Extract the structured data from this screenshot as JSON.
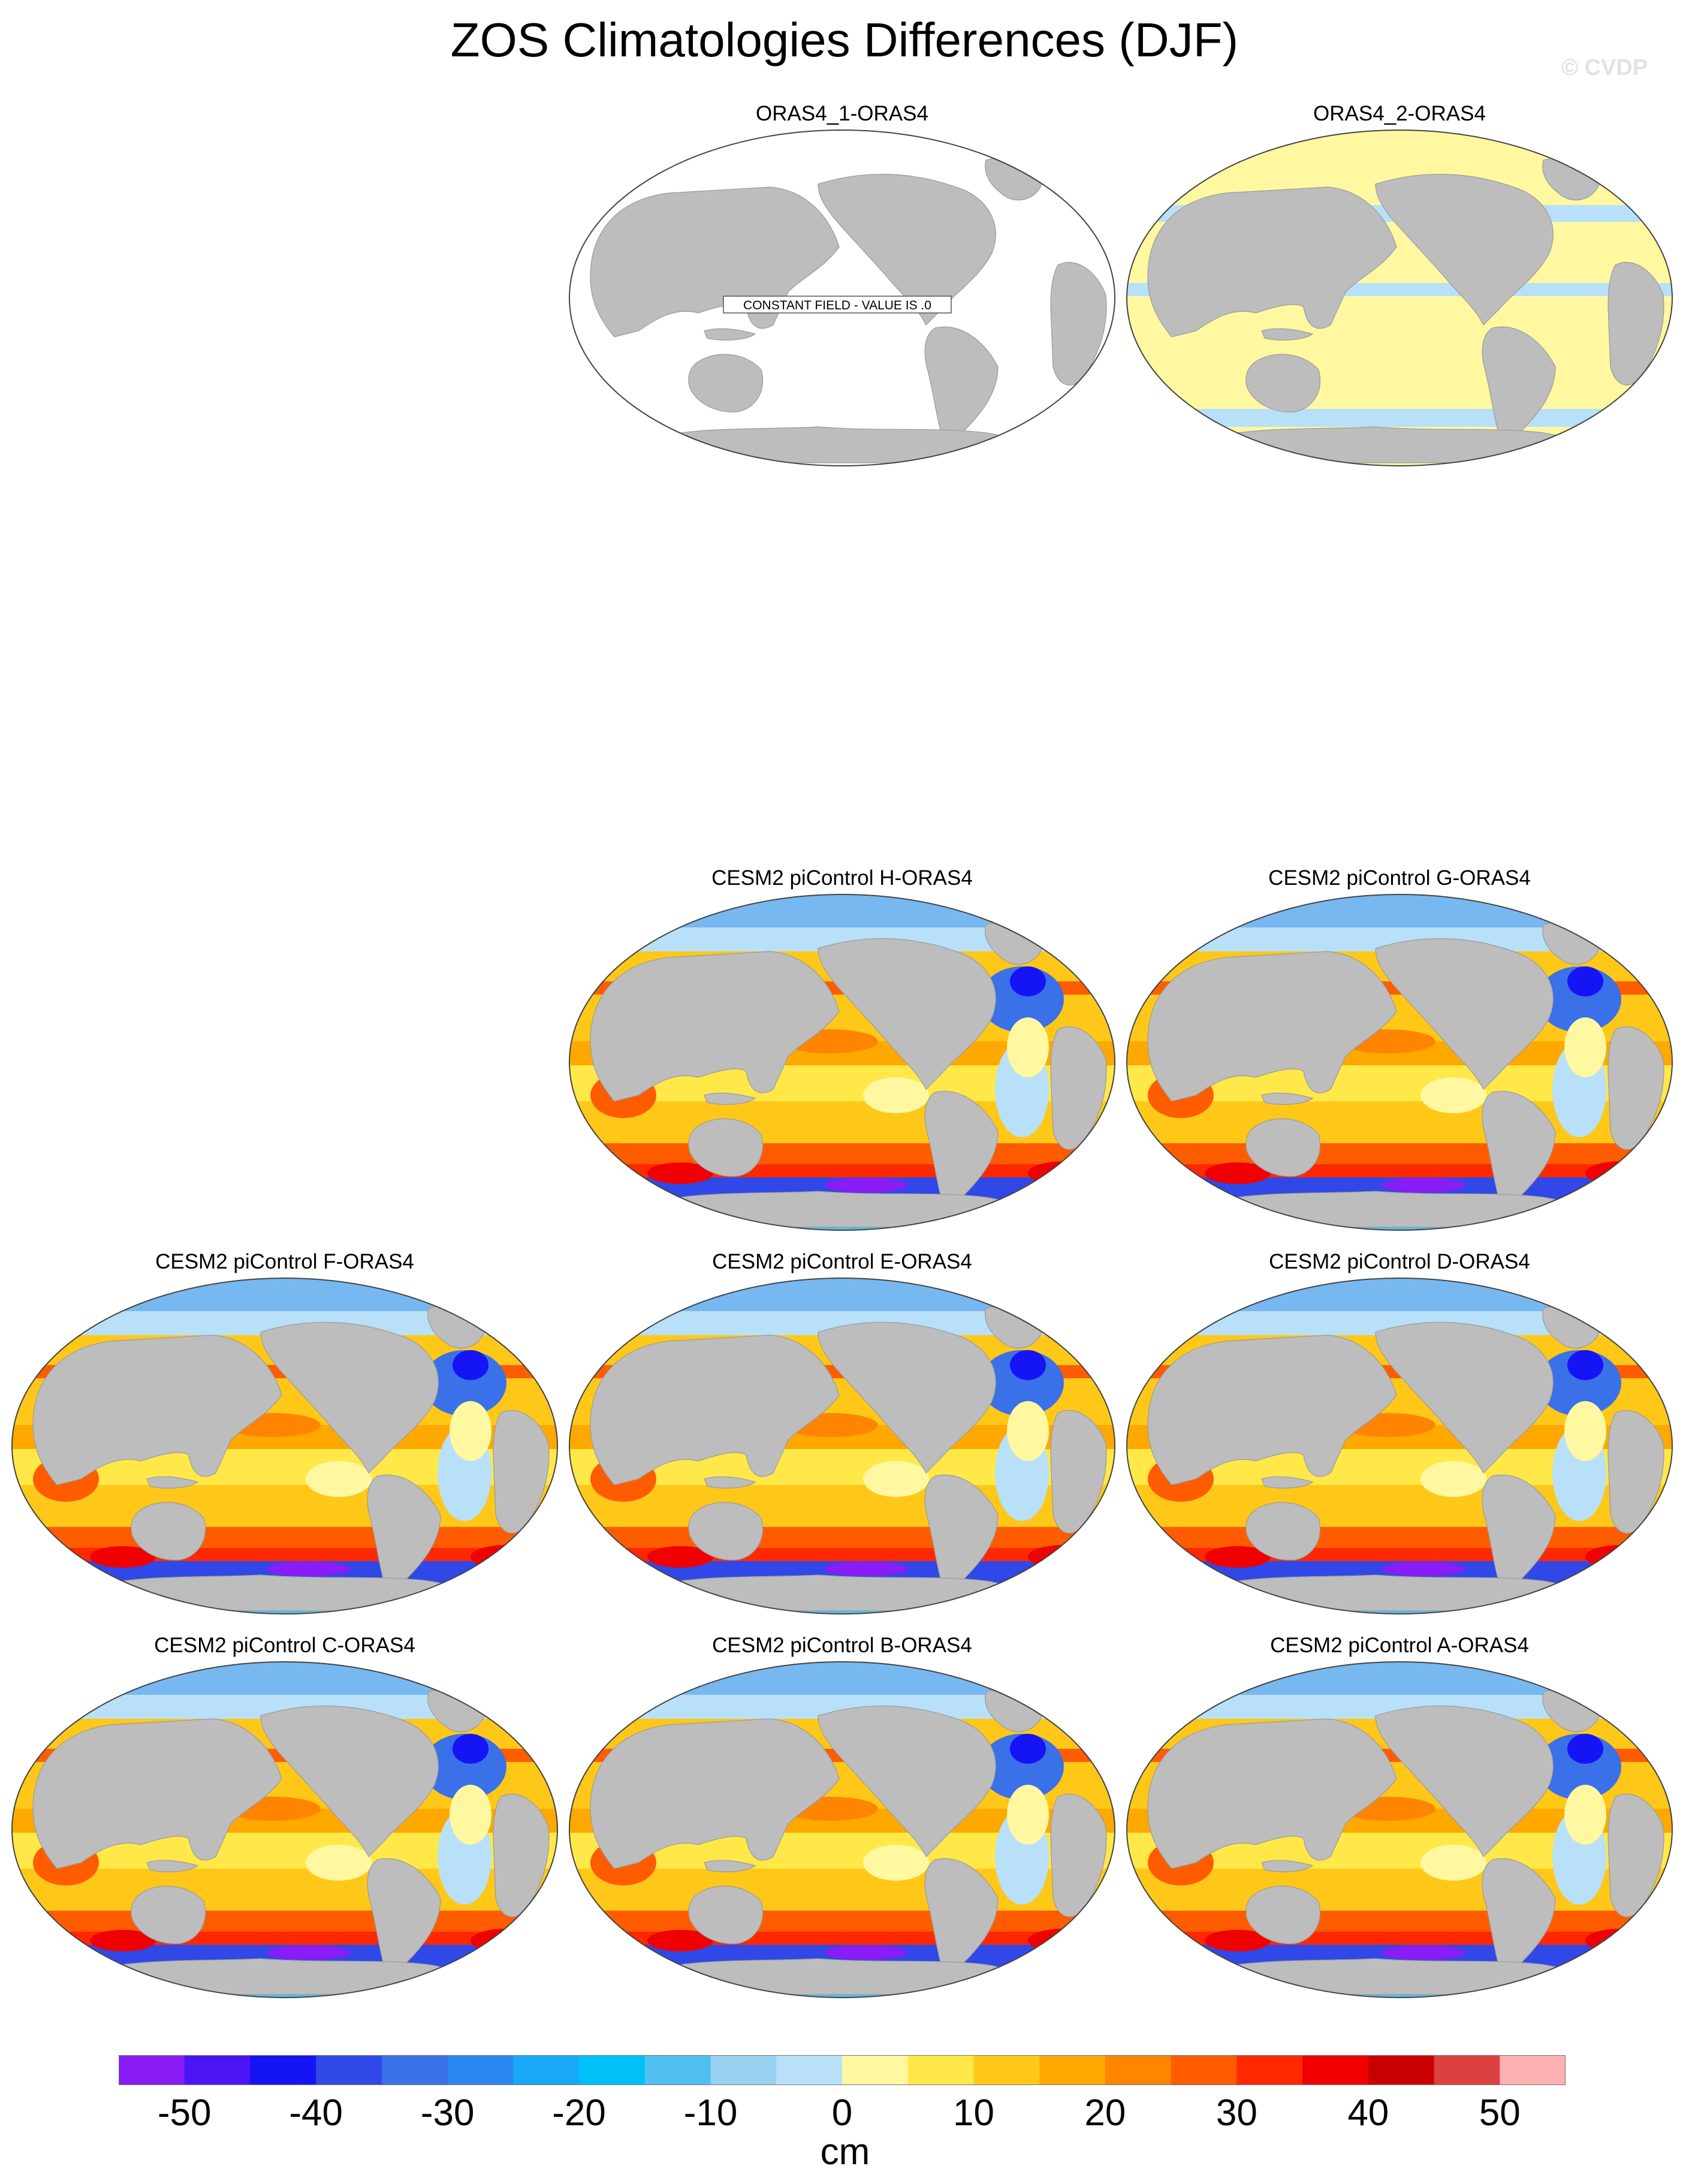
{
  "title": "ZOS Climatologies Differences (DJF)",
  "credit": "© CVDP",
  "panels": [
    {
      "id": "oras4-1",
      "title": "ORAS4_1-ORAS4",
      "style": "constant",
      "message": "CONSTANT FIELD - VALUE IS .0"
    },
    {
      "id": "oras4-2",
      "title": "ORAS4_2-ORAS4",
      "style": "near-zero"
    },
    {
      "id": "cesm2-h",
      "title": "CESM2 piControl H-ORAS4",
      "style": "model"
    },
    {
      "id": "cesm2-g",
      "title": "CESM2 piControl G-ORAS4",
      "style": "model"
    },
    {
      "id": "cesm2-f",
      "title": "CESM2 piControl F-ORAS4",
      "style": "model"
    },
    {
      "id": "cesm2-e",
      "title": "CESM2 piControl E-ORAS4",
      "style": "model"
    },
    {
      "id": "cesm2-d",
      "title": "CESM2 piControl D-ORAS4",
      "style": "model"
    },
    {
      "id": "cesm2-c",
      "title": "CESM2 piControl C-ORAS4",
      "style": "model"
    },
    {
      "id": "cesm2-b",
      "title": "CESM2 piControl B-ORAS4",
      "style": "model"
    },
    {
      "id": "cesm2-a",
      "title": "CESM2 piControl A-ORAS4",
      "style": "model"
    }
  ],
  "colorbar": {
    "units": "cm",
    "tick_labels": [
      "-50",
      "-40",
      "-30",
      "-20",
      "-10",
      "0",
      "10",
      "20",
      "30",
      "40",
      "50"
    ],
    "colors": [
      "#8a1cf5",
      "#4a14f5",
      "#1414f5",
      "#3048e8",
      "#3a70e8",
      "#2a88f0",
      "#18a8f8",
      "#00c0f8",
      "#50c0f0",
      "#98d0f0",
      "#b8e0f8",
      "#fff8a0",
      "#ffe848",
      "#ffc818",
      "#ffa800",
      "#ff8400",
      "#ff5c00",
      "#ff2800",
      "#f00000",
      "#c80000",
      "#dc4040",
      "#ffb0b0"
    ]
  }
}
